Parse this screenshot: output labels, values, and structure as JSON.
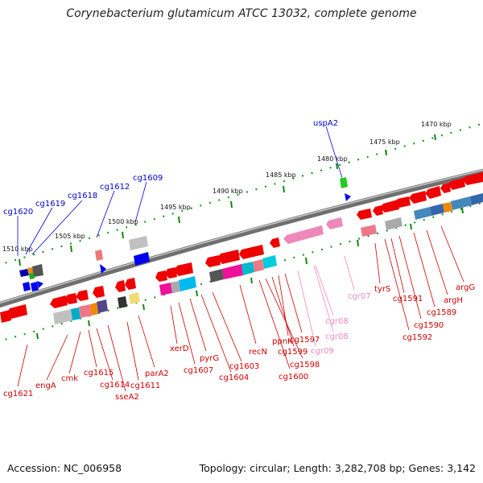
{
  "title": "Corynebacterium glutamicum ATCC 13032, complete genome",
  "accession": "Accession: NC_006958",
  "summary": "Topology: circular; Length: 3,282,708 bp; Genes: 3,142",
  "colors": {
    "forward_label": "#0000cc",
    "reverse_label": "#cc0000",
    "rna_label": "#ee88bb",
    "backbone": "#888888",
    "tick_mark": "#228822"
  },
  "scale_ticks": [
    "1470 kbp",
    "1475 kbp",
    "1480 kbp",
    "1485 kbp",
    "1490 kbp",
    "1495 kbp",
    "1500 kbp",
    "1505 kbp",
    "1510 kbp"
  ],
  "forward_genes": [
    "uspA2",
    "cg1609",
    "cg1612",
    "cg1618",
    "cg1619",
    "cg1620"
  ],
  "reverse_genes": [
    "argG",
    "argH",
    "cg1589",
    "cg1590",
    "cg1591",
    "cg1592",
    "tyrS",
    "cg1597",
    "ppnK",
    "cg1599",
    "recN",
    "cg1598",
    "cg1600",
    "cg1603",
    "cg1604",
    "pyrG",
    "cg1607",
    "xerD",
    "parA2",
    "cg1611",
    "sseA2",
    "cg1614",
    "cg1615",
    "cmk",
    "engA",
    "cg1621"
  ],
  "rna_genes": [
    "cgr07",
    "cgr08",
    "cgr08",
    "cgr09"
  ]
}
